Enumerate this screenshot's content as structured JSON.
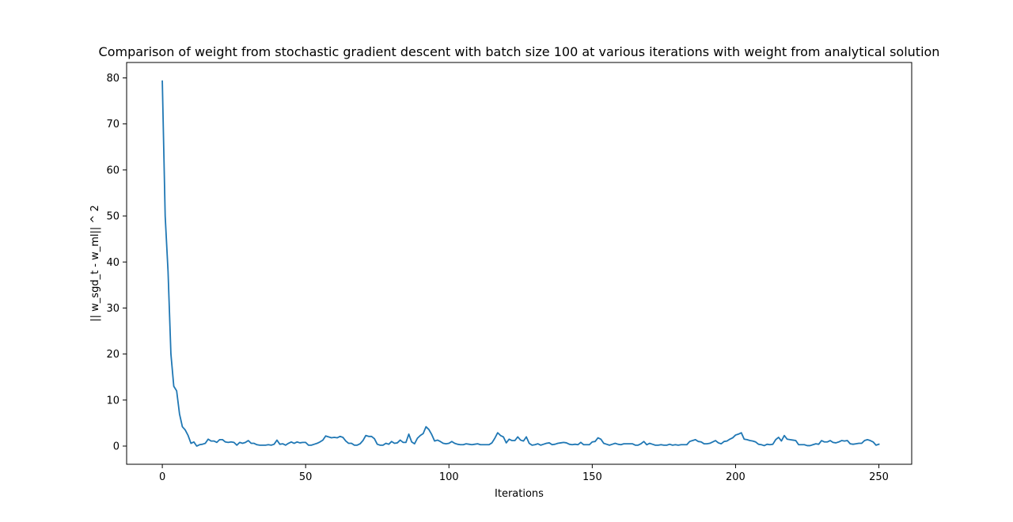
{
  "chart_data": {
    "type": "line",
    "title": "Comparison of weight from stochastic gradient descent with batch size 100 at various iterations with weight from analytical solution",
    "xlabel": "Iterations",
    "ylabel": "|| w_sgd_t - w_ml|| ^ 2",
    "xlim": [
      -12.45,
      261.45
    ],
    "ylim": [
      -3.95,
      83.35
    ],
    "xticks": [
      0,
      50,
      100,
      150,
      200,
      250
    ],
    "yticks": [
      0,
      10,
      20,
      30,
      40,
      50,
      60,
      70,
      80
    ],
    "grid": false,
    "line_color": "#1f77b4",
    "series": [
      {
        "values": [
          79.3,
          50.0,
          38.0,
          20.0,
          13.0,
          12.0,
          7.0,
          4.2,
          3.5,
          2.3,
          0.6,
          0.9,
          0.0,
          0.3,
          0.4,
          0.6,
          1.5,
          1.1,
          1.1,
          0.8,
          1.4,
          1.4,
          0.9,
          0.8,
          0.9,
          0.8,
          0.2,
          0.8,
          0.6,
          0.8,
          1.2,
          0.6,
          0.6,
          0.3,
          0.2,
          0.2,
          0.2,
          0.3,
          0.2,
          0.4,
          1.3,
          0.4,
          0.5,
          0.2,
          0.6,
          0.9,
          0.6,
          0.9,
          0.7,
          0.8,
          0.8,
          0.2,
          0.2,
          0.4,
          0.6,
          0.9,
          1.3,
          2.2,
          2.0,
          1.8,
          1.9,
          1.8,
          2.1,
          1.9,
          1.1,
          0.6,
          0.6,
          0.2,
          0.2,
          0.5,
          1.2,
          2.3,
          2.1,
          2.1,
          1.6,
          0.4,
          0.2,
          0.2,
          0.6,
          0.4,
          1.0,
          0.6,
          0.7,
          1.3,
          0.8,
          0.8,
          2.6,
          0.9,
          0.5,
          1.7,
          2.3,
          2.7,
          4.2,
          3.6,
          2.5,
          1.1,
          1.3,
          1.0,
          0.6,
          0.5,
          0.6,
          1.0,
          0.6,
          0.4,
          0.3,
          0.3,
          0.5,
          0.4,
          0.3,
          0.4,
          0.5,
          0.3,
          0.3,
          0.3,
          0.3,
          0.7,
          1.7,
          2.9,
          2.3,
          2.0,
          0.7,
          1.5,
          1.2,
          1.2,
          2.0,
          1.3,
          1.1,
          2.0,
          0.6,
          0.2,
          0.3,
          0.5,
          0.2,
          0.4,
          0.6,
          0.7,
          0.3,
          0.4,
          0.6,
          0.7,
          0.8,
          0.7,
          0.4,
          0.3,
          0.4,
          0.3,
          0.8,
          0.3,
          0.3,
          0.3,
          0.9,
          1.0,
          1.8,
          1.5,
          0.6,
          0.4,
          0.2,
          0.4,
          0.6,
          0.4,
          0.3,
          0.5,
          0.5,
          0.5,
          0.5,
          0.2,
          0.2,
          0.5,
          1.0,
          0.3,
          0.6,
          0.4,
          0.2,
          0.2,
          0.3,
          0.2,
          0.2,
          0.4,
          0.2,
          0.3,
          0.2,
          0.3,
          0.3,
          0.3,
          1.0,
          1.2,
          1.4,
          1.0,
          0.9,
          0.5,
          0.5,
          0.6,
          0.9,
          1.2,
          0.7,
          0.5,
          1.0,
          1.1,
          1.5,
          1.8,
          2.4,
          2.6,
          2.9,
          1.5,
          1.4,
          1.2,
          1.1,
          0.9,
          0.4,
          0.3,
          0.1,
          0.4,
          0.3,
          0.4,
          1.4,
          1.9,
          1.1,
          2.3,
          1.5,
          1.4,
          1.3,
          1.2,
          0.3,
          0.3,
          0.3,
          0.1,
          0.1,
          0.3,
          0.5,
          0.4,
          1.2,
          0.9,
          0.9,
          1.2,
          0.8,
          0.7,
          0.9,
          1.2,
          1.1,
          1.2,
          0.5,
          0.4,
          0.5,
          0.6,
          0.6,
          1.2,
          1.4,
          1.2,
          0.9,
          0.2,
          0.4
        ]
      }
    ]
  }
}
